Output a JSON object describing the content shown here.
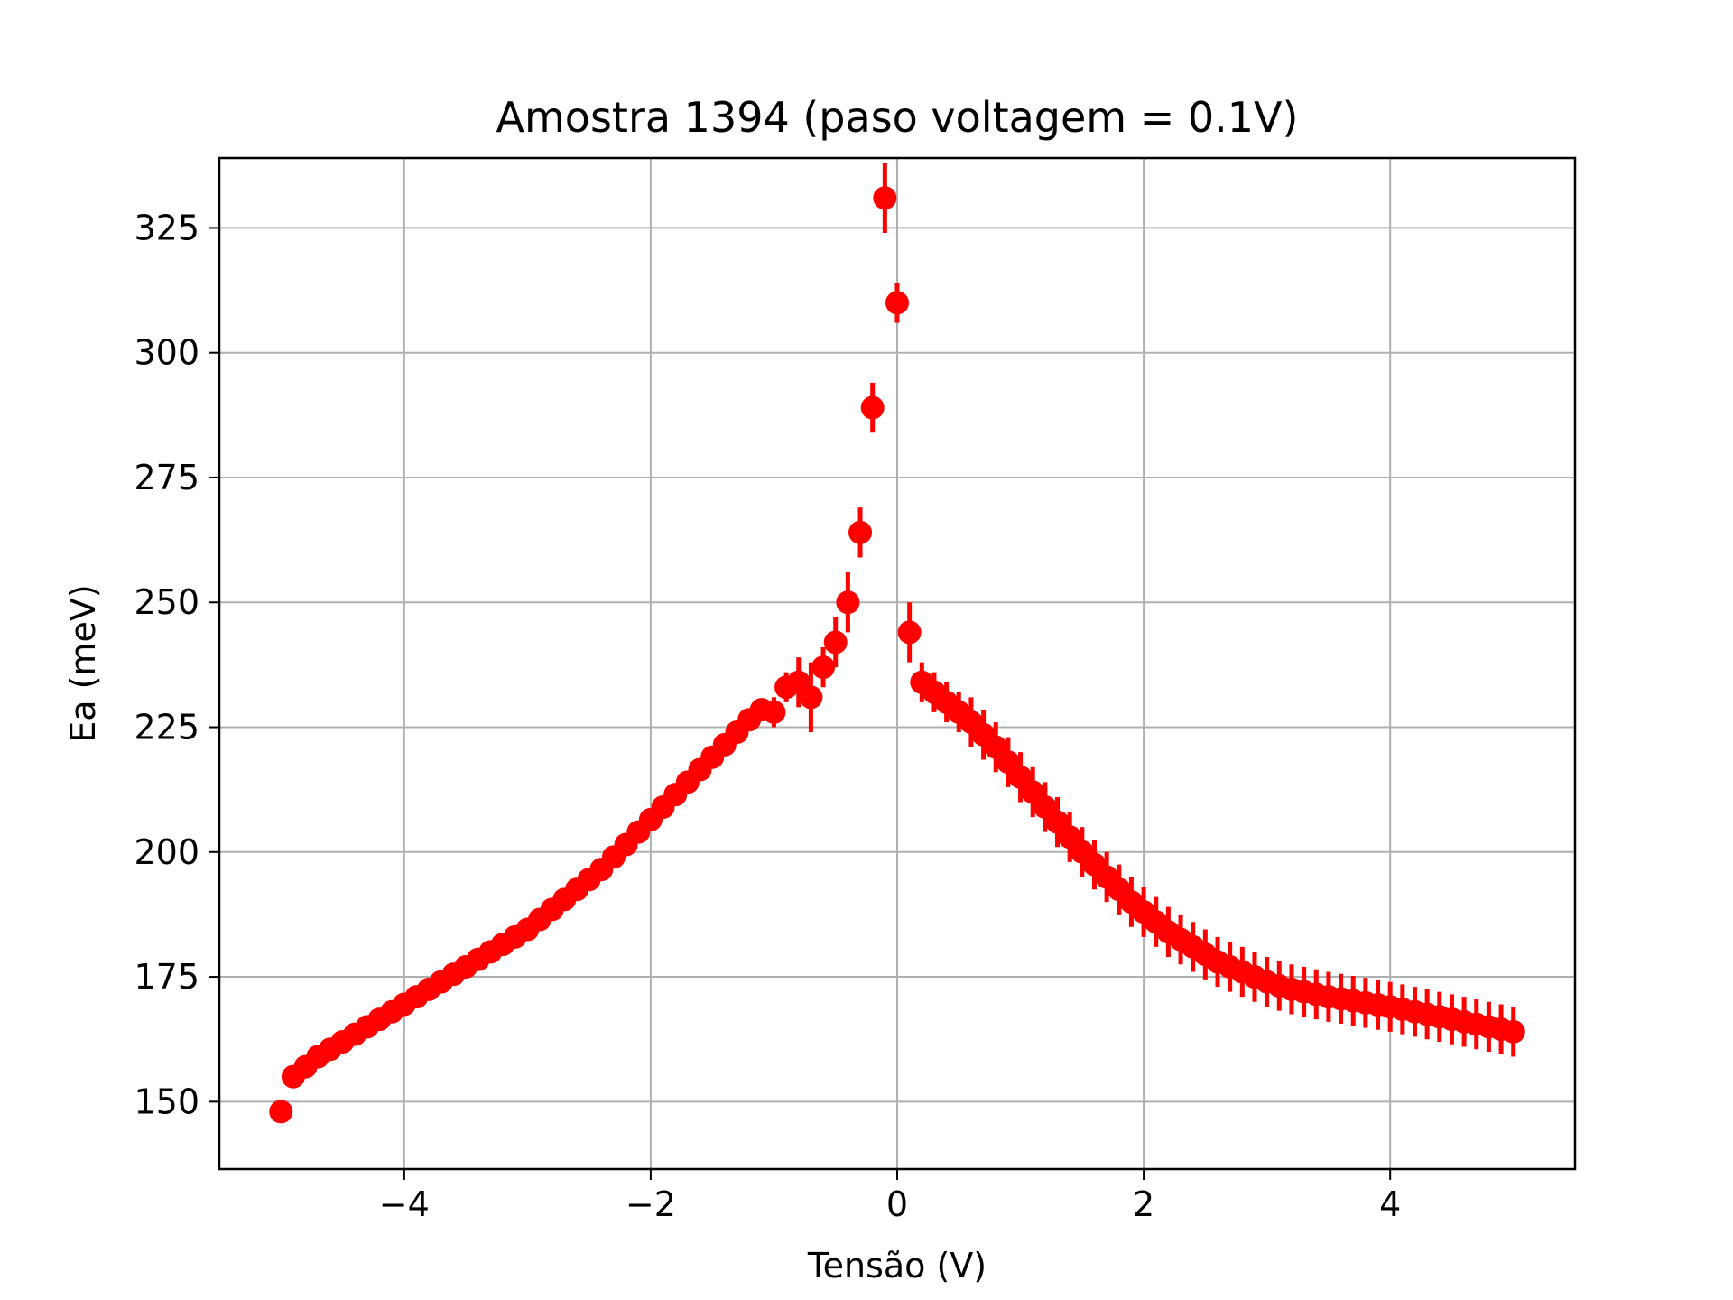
{
  "chart_data": {
    "type": "scatter",
    "title": "Amostra 1394 (paso voltagem = 0.1V)",
    "xlabel": "Tensão (V)",
    "ylabel": "Ea (meV)",
    "xlim": [
      -5.5,
      5.5
    ],
    "ylim": [
      136.5,
      339
    ],
    "grid": true,
    "marker_color": "#ff0000",
    "grid_color": "#b0b0b0",
    "error_bars": true,
    "x_ticks": [
      -4,
      -2,
      0,
      2,
      4
    ],
    "x_tick_labels": [
      "−4",
      "−2",
      "0",
      "2",
      "4"
    ],
    "y_ticks": [
      150,
      175,
      200,
      225,
      250,
      275,
      300,
      325
    ],
    "y_tick_labels": [
      "150",
      "175",
      "200",
      "225",
      "250",
      "275",
      "300",
      "325"
    ],
    "series": [
      {
        "x": [
          -5.0,
          -4.9,
          -4.8,
          -4.7,
          -4.6,
          -4.5,
          -4.4,
          -4.3,
          -4.2,
          -4.1,
          -4.0,
          -3.9,
          -3.8,
          -3.7,
          -3.6,
          -3.5,
          -3.4,
          -3.3,
          -3.2,
          -3.1,
          -3.0,
          -2.9,
          -2.8,
          -2.7,
          -2.6,
          -2.5,
          -2.4,
          -2.3,
          -2.2,
          -2.1,
          -2.0,
          -1.9,
          -1.8,
          -1.7,
          -1.6,
          -1.5,
          -1.4,
          -1.3,
          -1.2,
          -1.1,
          -1.0,
          -0.9,
          -0.8,
          -0.7,
          -0.6,
          -0.5,
          -0.4,
          -0.3,
          -0.2,
          -0.1,
          0.0,
          0.1,
          0.2,
          0.3,
          0.4,
          0.5,
          0.6,
          0.7,
          0.8,
          0.9,
          1.0,
          1.1,
          1.2,
          1.3,
          1.4,
          1.5,
          1.6,
          1.7,
          1.8,
          1.9,
          2.0,
          2.1,
          2.2,
          2.3,
          2.4,
          2.5,
          2.6,
          2.7,
          2.8,
          2.9,
          3.0,
          3.1,
          3.2,
          3.3,
          3.4,
          3.5,
          3.6,
          3.7,
          3.8,
          3.9,
          4.0,
          4.1,
          4.2,
          4.3,
          4.4,
          4.5,
          4.6,
          4.7,
          4.8,
          4.9,
          5.0
        ],
        "y": [
          148,
          155,
          157,
          159,
          160.5,
          162,
          163.5,
          165,
          166.5,
          168,
          169.5,
          171,
          172.5,
          174,
          175.5,
          177,
          178.5,
          180,
          181.5,
          183,
          184.5,
          186.5,
          188.5,
          190.5,
          192.5,
          194.5,
          196.5,
          199,
          201.5,
          204,
          206.5,
          209,
          211.5,
          214,
          216.5,
          219,
          221.5,
          224,
          226.5,
          228.5,
          228,
          233,
          234,
          231,
          237,
          242,
          250,
          264,
          289,
          331,
          310,
          244,
          234,
          232,
          230,
          228,
          226,
          223.5,
          221,
          218,
          215,
          212,
          209,
          206,
          203,
          200,
          197.5,
          195,
          192.5,
          190,
          188,
          186,
          184,
          182.5,
          181,
          179.5,
          178,
          177,
          176,
          175,
          174,
          173.2,
          172.5,
          172,
          171.5,
          171,
          170.6,
          170.2,
          169.8,
          169.4,
          169,
          168.5,
          168,
          167.5,
          167,
          166.5,
          166,
          165.5,
          165,
          164.5,
          164
        ],
        "error": [
          0,
          2,
          2,
          2,
          2,
          2,
          2,
          2,
          2,
          2,
          2,
          2,
          2,
          2,
          2,
          2,
          2,
          2,
          2,
          2,
          2,
          2,
          2,
          2,
          2,
          2,
          2,
          2,
          2,
          2,
          2,
          2,
          2,
          2,
          2,
          2,
          2,
          2,
          2,
          2,
          3,
          3,
          5,
          7,
          4,
          5,
          6,
          5,
          5,
          7,
          4,
          6,
          4,
          4,
          4,
          4,
          5,
          5,
          5,
          5,
          5,
          5,
          5,
          5,
          5,
          5,
          5,
          5,
          5,
          5,
          5,
          5,
          5,
          5,
          5,
          5,
          5,
          5,
          5,
          5,
          5,
          5,
          5,
          5,
          5,
          5,
          5,
          5,
          5,
          5,
          5,
          5,
          5,
          5,
          5,
          5,
          5,
          5,
          5,
          5,
          5
        ]
      }
    ]
  }
}
